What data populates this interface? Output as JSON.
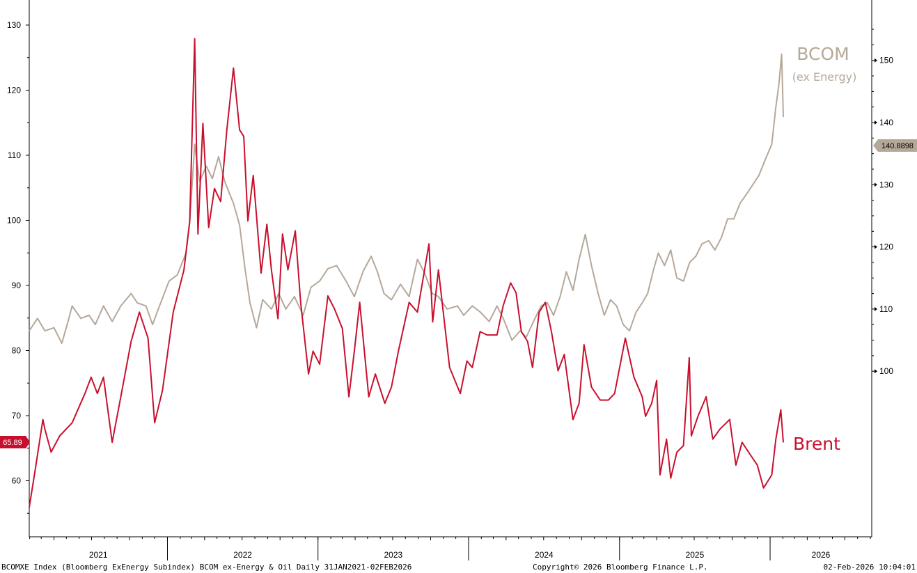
{
  "chart_data": {
    "type": "line",
    "x_range": [
      "2021-01-31",
      "2026-02-02"
    ],
    "left_axis": {
      "ylim": [
        50,
        135
      ],
      "ticks": [
        60,
        70,
        80,
        90,
        100,
        110,
        120,
        130
      ]
    },
    "right_axis": {
      "ylim": [
        98.5,
        156
      ],
      "ticks": [
        100,
        110,
        120,
        130,
        140,
        150
      ]
    },
    "x_year_labels": [
      "2021",
      "2022",
      "2023",
      "2024",
      "2025",
      "2026"
    ],
    "series": [
      {
        "name": "Brent",
        "axis": "left",
        "color": "#c8102e",
        "last_value_label": "65.89",
        "points": [
          [
            "2021-01-31",
            55.9
          ],
          [
            "2021-02-15",
            61.9
          ],
          [
            "2021-03-05",
            69.4
          ],
          [
            "2021-03-10",
            67.9
          ],
          [
            "2021-03-25",
            64.4
          ],
          [
            "2021-04-15",
            66.9
          ],
          [
            "2021-05-15",
            68.9
          ],
          [
            "2021-06-15",
            73.4
          ],
          [
            "2021-06-30",
            75.9
          ],
          [
            "2021-07-15",
            73.4
          ],
          [
            "2021-07-30",
            75.9
          ],
          [
            "2021-08-20",
            65.9
          ],
          [
            "2021-09-10",
            72.9
          ],
          [
            "2021-10-05",
            81.4
          ],
          [
            "2021-10-25",
            85.9
          ],
          [
            "2021-11-15",
            81.9
          ],
          [
            "2021-12-01",
            68.9
          ],
          [
            "2021-12-20",
            73.9
          ],
          [
            "2022-01-15",
            85.9
          ],
          [
            "2022-02-10",
            92.4
          ],
          [
            "2022-02-24",
            99.9
          ],
          [
            "2022-03-08",
            127.9
          ],
          [
            "2022-03-16",
            97.9
          ],
          [
            "2022-03-28",
            114.9
          ],
          [
            "2022-04-11",
            98.9
          ],
          [
            "2022-04-25",
            104.9
          ],
          [
            "2022-05-10",
            102.9
          ],
          [
            "2022-05-25",
            113.9
          ],
          [
            "2022-06-10",
            123.4
          ],
          [
            "2022-06-25",
            113.9
          ],
          [
            "2022-07-05",
            112.9
          ],
          [
            "2022-07-15",
            99.9
          ],
          [
            "2022-07-28",
            106.9
          ],
          [
            "2022-08-16",
            91.9
          ],
          [
            "2022-08-30",
            99.4
          ],
          [
            "2022-09-10",
            92.4
          ],
          [
            "2022-09-26",
            84.9
          ],
          [
            "2022-10-07",
            97.9
          ],
          [
            "2022-10-20",
            92.4
          ],
          [
            "2022-11-07",
            98.4
          ],
          [
            "2022-11-20",
            87.4
          ],
          [
            "2022-12-09",
            76.4
          ],
          [
            "2022-12-20",
            79.9
          ],
          [
            "2023-01-05",
            77.9
          ],
          [
            "2023-01-25",
            88.4
          ],
          [
            "2023-02-10",
            86.4
          ],
          [
            "2023-03-01",
            83.4
          ],
          [
            "2023-03-17",
            72.9
          ],
          [
            "2023-03-30",
            79.9
          ],
          [
            "2023-04-12",
            87.4
          ],
          [
            "2023-05-04",
            72.9
          ],
          [
            "2023-05-20",
            76.4
          ],
          [
            "2023-06-12",
            71.9
          ],
          [
            "2023-06-28",
            74.4
          ],
          [
            "2023-07-15",
            79.9
          ],
          [
            "2023-08-10",
            87.4
          ],
          [
            "2023-08-30",
            85.9
          ],
          [
            "2023-09-27",
            96.4
          ],
          [
            "2023-10-06",
            84.4
          ],
          [
            "2023-10-20",
            92.4
          ],
          [
            "2023-11-16",
            77.4
          ],
          [
            "2023-12-12",
            73.4
          ],
          [
            "2023-12-28",
            78.4
          ],
          [
            "2024-01-10",
            77.4
          ],
          [
            "2024-01-29",
            82.9
          ],
          [
            "2024-02-15",
            82.4
          ],
          [
            "2024-03-10",
            82.4
          ],
          [
            "2024-03-25",
            86.9
          ],
          [
            "2024-04-12",
            90.4
          ],
          [
            "2024-04-25",
            88.9
          ],
          [
            "2024-05-08",
            82.9
          ],
          [
            "2024-05-23",
            81.4
          ],
          [
            "2024-06-04",
            77.4
          ],
          [
            "2024-06-20",
            85.9
          ],
          [
            "2024-07-05",
            87.4
          ],
          [
            "2024-07-20",
            82.9
          ],
          [
            "2024-08-05",
            76.9
          ],
          [
            "2024-08-20",
            79.4
          ],
          [
            "2024-09-10",
            69.4
          ],
          [
            "2024-09-25",
            71.9
          ],
          [
            "2024-10-07",
            80.9
          ],
          [
            "2024-10-25",
            74.4
          ],
          [
            "2024-11-15",
            72.4
          ],
          [
            "2024-12-05",
            72.4
          ],
          [
            "2024-12-20",
            73.4
          ],
          [
            "2025-01-15",
            81.9
          ],
          [
            "2025-02-05",
            75.9
          ],
          [
            "2025-02-25",
            72.9
          ],
          [
            "2025-03-05",
            69.9
          ],
          [
            "2025-03-20",
            71.9
          ],
          [
            "2025-04-01",
            75.4
          ],
          [
            "2025-04-09",
            60.9
          ],
          [
            "2025-04-25",
            66.4
          ],
          [
            "2025-05-05",
            60.4
          ],
          [
            "2025-05-20",
            64.4
          ],
          [
            "2025-06-05",
            65.4
          ],
          [
            "2025-06-19",
            78.9
          ],
          [
            "2025-06-24",
            66.9
          ],
          [
            "2025-07-10",
            69.9
          ],
          [
            "2025-07-30",
            72.9
          ],
          [
            "2025-08-15",
            66.4
          ],
          [
            "2025-09-01",
            67.9
          ],
          [
            "2025-09-25",
            69.4
          ],
          [
            "2025-10-10",
            62.4
          ],
          [
            "2025-10-25",
            65.9
          ],
          [
            "2025-11-15",
            63.9
          ],
          [
            "2025-12-01",
            62.4
          ],
          [
            "2025-12-16",
            58.9
          ],
          [
            "2026-01-05",
            60.9
          ],
          [
            "2026-01-15",
            66.4
          ],
          [
            "2026-01-27",
            70.9
          ],
          [
            "2026-02-02",
            65.89
          ]
        ]
      },
      {
        "name": "BCOMXE Index (Bloomberg ExEnergy Subindex)",
        "axis": "right",
        "color": "#b5a899",
        "last_value_label": "140.8898",
        "annotation_line1": "BCOM",
        "annotation_line2": "(ex Energy)",
        "points": [
          [
            "2021-01-31",
            106.5
          ],
          [
            "2021-02-20",
            108.5
          ],
          [
            "2021-03-10",
            106.5
          ],
          [
            "2021-04-01",
            107.0
          ],
          [
            "2021-04-20",
            104.5
          ],
          [
            "2021-05-05",
            108.0
          ],
          [
            "2021-05-15",
            110.5
          ],
          [
            "2021-06-05",
            108.5
          ],
          [
            "2021-06-25",
            109.0
          ],
          [
            "2021-07-10",
            107.5
          ],
          [
            "2021-07-30",
            110.5
          ],
          [
            "2021-08-20",
            108.0
          ],
          [
            "2021-09-10",
            110.5
          ],
          [
            "2021-10-05",
            112.5
          ],
          [
            "2021-10-20",
            111.0
          ],
          [
            "2021-11-10",
            110.5
          ],
          [
            "2021-11-26",
            107.5
          ],
          [
            "2021-12-10",
            110.0
          ],
          [
            "2022-01-05",
            114.5
          ],
          [
            "2022-01-25",
            115.5
          ],
          [
            "2022-02-15",
            119.0
          ],
          [
            "2022-02-24",
            124.0
          ],
          [
            "2022-03-08",
            136.5
          ],
          [
            "2022-03-20",
            130.5
          ],
          [
            "2022-04-05",
            133.0
          ],
          [
            "2022-04-20",
            131.0
          ],
          [
            "2022-05-05",
            134.5
          ],
          [
            "2022-05-20",
            130.5
          ],
          [
            "2022-06-10",
            127.0
          ],
          [
            "2022-06-25",
            123.5
          ],
          [
            "2022-07-08",
            116.5
          ],
          [
            "2022-07-20",
            111.0
          ],
          [
            "2022-08-05",
            107.0
          ],
          [
            "2022-08-20",
            111.5
          ],
          [
            "2022-09-10",
            110.0
          ],
          [
            "2022-09-28",
            112.5
          ],
          [
            "2022-10-15",
            110.0
          ],
          [
            "2022-11-05",
            112.0
          ],
          [
            "2022-11-26",
            109.0
          ],
          [
            "2022-12-15",
            113.5
          ],
          [
            "2023-01-05",
            114.5
          ],
          [
            "2023-01-25",
            116.5
          ],
          [
            "2023-02-15",
            117.0
          ],
          [
            "2023-03-10",
            114.5
          ],
          [
            "2023-03-30",
            112.0
          ],
          [
            "2023-04-20",
            116.0
          ],
          [
            "2023-05-10",
            118.5
          ],
          [
            "2023-05-25",
            116.0
          ],
          [
            "2023-06-10",
            112.5
          ],
          [
            "2023-06-28",
            111.5
          ],
          [
            "2023-07-20",
            114.0
          ],
          [
            "2023-08-10",
            112.0
          ],
          [
            "2023-08-30",
            118.0
          ],
          [
            "2023-09-15",
            116.0
          ],
          [
            "2023-10-05",
            112.5
          ],
          [
            "2023-10-20",
            112.0
          ],
          [
            "2023-11-10",
            110.0
          ],
          [
            "2023-12-05",
            110.5
          ],
          [
            "2023-12-20",
            109.0
          ],
          [
            "2024-01-10",
            110.5
          ],
          [
            "2024-01-30",
            109.5
          ],
          [
            "2024-02-20",
            108.0
          ],
          [
            "2024-03-10",
            110.5
          ],
          [
            "2024-03-25",
            108.5
          ],
          [
            "2024-04-15",
            105.0
          ],
          [
            "2024-05-05",
            106.5
          ],
          [
            "2024-05-20",
            105.5
          ],
          [
            "2024-06-10",
            108.5
          ],
          [
            "2024-06-25",
            110.5
          ],
          [
            "2024-07-10",
            111.0
          ],
          [
            "2024-07-25",
            109.0
          ],
          [
            "2024-08-10",
            112.0
          ],
          [
            "2024-08-25",
            116.0
          ],
          [
            "2024-09-10",
            113.0
          ],
          [
            "2024-09-25",
            118.0
          ],
          [
            "2024-10-10",
            122.0
          ],
          [
            "2024-10-25",
            117.0
          ],
          [
            "2024-11-10",
            112.5
          ],
          [
            "2024-11-25",
            109.0
          ],
          [
            "2024-12-10",
            111.5
          ],
          [
            "2024-12-25",
            110.5
          ],
          [
            "2025-01-10",
            107.5
          ],
          [
            "2025-01-25",
            106.5
          ],
          [
            "2025-02-10",
            109.5
          ],
          [
            "2025-02-25",
            111.0
          ],
          [
            "2025-03-10",
            112.5
          ],
          [
            "2025-03-25",
            116.5
          ],
          [
            "2025-04-05",
            119.0
          ],
          [
            "2025-04-20",
            117.0
          ],
          [
            "2025-05-05",
            119.5
          ],
          [
            "2025-05-20",
            115.0
          ],
          [
            "2025-06-05",
            114.5
          ],
          [
            "2025-06-20",
            117.5
          ],
          [
            "2025-07-05",
            118.5
          ],
          [
            "2025-07-20",
            120.5
          ],
          [
            "2025-08-05",
            121.0
          ],
          [
            "2025-08-20",
            119.5
          ],
          [
            "2025-09-05",
            121.5
          ],
          [
            "2025-09-20",
            124.5
          ],
          [
            "2025-10-05",
            124.5
          ],
          [
            "2025-10-20",
            127.0
          ],
          [
            "2025-11-05",
            128.5
          ],
          [
            "2025-11-20",
            130.0
          ],
          [
            "2025-12-05",
            131.5
          ],
          [
            "2025-12-20",
            134.0
          ],
          [
            "2026-01-05",
            136.5
          ],
          [
            "2026-01-15",
            142.5
          ],
          [
            "2026-01-22",
            146.0
          ],
          [
            "2026-01-29",
            151.0
          ],
          [
            "2026-02-02",
            140.8898
          ]
        ]
      }
    ],
    "legend_labels": {
      "brent": "Brent",
      "bcom_line1": "BCOM",
      "bcom_line2": "(ex Energy)"
    },
    "footer": {
      "left": "BCOMXE Index (Bloomberg ExEnergy Subindex) BCOM ex-Energy & Oil Daily 31JAN2021-02FEB2026",
      "center": "Copyright© 2026 Bloomberg Finance L.P.",
      "right": "02-Feb-2026 10:04:01"
    }
  }
}
